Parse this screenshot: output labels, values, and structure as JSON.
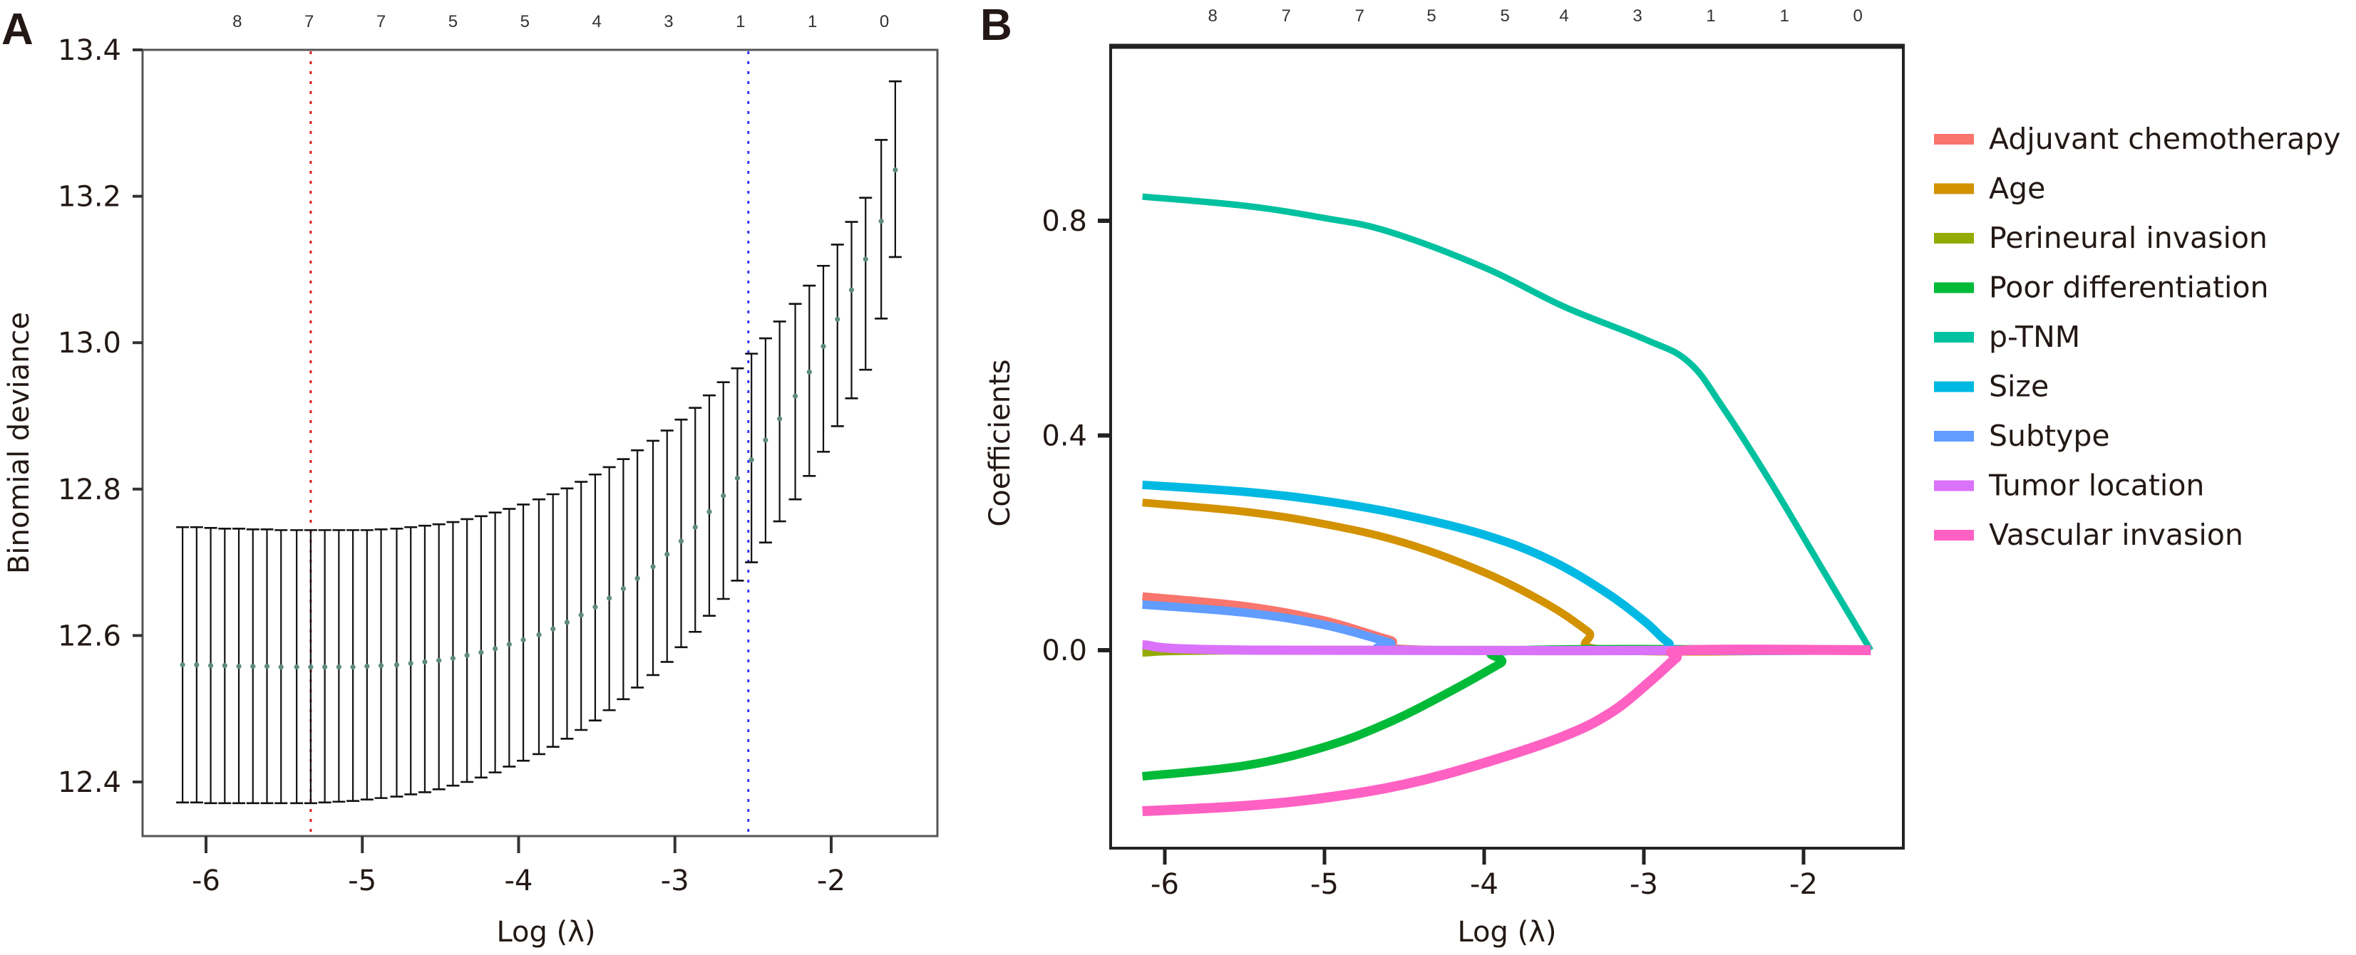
{
  "figure": {
    "panels": [
      "A",
      "B"
    ]
  },
  "chart_data": [
    {
      "panel": "A",
      "type": "scatter",
      "subtype": "errorbar",
      "title": "",
      "xlabel": "Log (λ)",
      "ylabel": "Binomial deviance",
      "xlim": [
        -6.4,
        -1.3
      ],
      "ylim": [
        12.35,
        13.4
      ],
      "xticks": [
        -6,
        -5,
        -4,
        -3,
        -2
      ],
      "xtick_labels": [
        "-6",
        "-5",
        "-4",
        "-3",
        "-2"
      ],
      "yticks": [
        12.4,
        12.6,
        12.8,
        13.0,
        13.2,
        13.4
      ],
      "ytick_labels": [
        "12.4",
        "12.6",
        "12.8",
        "13.0",
        "13.2",
        "13.4"
      ],
      "top_axis": {
        "positions": [
          -5.8,
          -5.34,
          -4.88,
          -4.42,
          -3.96,
          -3.5,
          -3.04,
          -2.58,
          -2.12,
          -1.66
        ],
        "labels": [
          "8",
          "7",
          "7",
          "5",
          "5",
          "4",
          "3",
          "1",
          "1",
          "0"
        ]
      },
      "vlines": [
        {
          "name": "lambda.min",
          "x": -5.33,
          "color": "#E41A1C",
          "style": "dotted"
        },
        {
          "name": "lambda.1se",
          "x": -2.53,
          "color": "#3333FF",
          "style": "dotted"
        }
      ],
      "point_color": "#5E8C80",
      "errorbar_color": "#000000",
      "x": [
        -6.15,
        -6.06,
        -5.97,
        -5.88,
        -5.79,
        -5.7,
        -5.61,
        -5.52,
        -5.42,
        -5.33,
        -5.24,
        -5.15,
        -5.06,
        -4.97,
        -4.88,
        -4.78,
        -4.69,
        -4.6,
        -4.51,
        -4.42,
        -4.33,
        -4.24,
        -4.15,
        -4.06,
        -3.97,
        -3.87,
        -3.78,
        -3.69,
        -3.6,
        -3.51,
        -3.42,
        -3.33,
        -3.24,
        -3.14,
        -3.05,
        -2.96,
        -2.87,
        -2.78,
        -2.69,
        -2.6,
        -2.51,
        -2.42,
        -2.33,
        -2.23,
        -2.14,
        -2.05,
        -1.96,
        -1.87,
        -1.78,
        -1.68,
        -1.59
      ],
      "mean": [
        12.56,
        12.56,
        12.559,
        12.559,
        12.558,
        12.558,
        12.558,
        12.557,
        12.557,
        12.557,
        12.557,
        12.557,
        12.557,
        12.558,
        12.559,
        12.56,
        12.562,
        12.564,
        12.566,
        12.569,
        12.573,
        12.577,
        12.582,
        12.588,
        12.594,
        12.601,
        12.609,
        12.618,
        12.628,
        12.639,
        12.651,
        12.664,
        12.678,
        12.694,
        12.711,
        12.729,
        12.748,
        12.769,
        12.791,
        12.815,
        12.84,
        12.867,
        12.896,
        12.927,
        12.96,
        12.995,
        13.032,
        13.072,
        13.114,
        13.166,
        13.236
      ],
      "upper": [
        12.748,
        12.748,
        12.747,
        12.746,
        12.746,
        12.745,
        12.745,
        12.744,
        12.744,
        12.744,
        12.744,
        12.744,
        12.744,
        12.744,
        12.745,
        12.746,
        12.748,
        12.75,
        12.752,
        12.755,
        12.759,
        12.763,
        12.768,
        12.773,
        12.779,
        12.786,
        12.793,
        12.801,
        12.81,
        12.82,
        12.83,
        12.841,
        12.853,
        12.866,
        12.88,
        12.895,
        12.911,
        12.928,
        12.946,
        12.965,
        12.985,
        13.006,
        13.029,
        13.053,
        13.078,
        13.105,
        13.134,
        13.165,
        13.198,
        13.277,
        13.357
      ],
      "lower": [
        12.372,
        12.372,
        12.371,
        12.371,
        12.371,
        12.371,
        12.371,
        12.371,
        12.371,
        12.371,
        12.372,
        12.373,
        12.374,
        12.376,
        12.378,
        12.38,
        12.383,
        12.386,
        12.39,
        12.395,
        12.4,
        12.406,
        12.413,
        12.421,
        12.429,
        12.438,
        12.448,
        12.459,
        12.471,
        12.484,
        12.498,
        12.513,
        12.529,
        12.546,
        12.564,
        12.584,
        12.605,
        12.627,
        12.65,
        12.675,
        12.7,
        12.727,
        12.756,
        12.786,
        12.818,
        12.851,
        12.886,
        12.924,
        12.963,
        13.033,
        13.117
      ]
    },
    {
      "panel": "B",
      "type": "line",
      "title": "",
      "xlabel": "Log (λ)",
      "ylabel": "Coefficients",
      "xlim": [
        -6.34,
        -1.36
      ],
      "ylim": [
        -0.369,
        1.127
      ],
      "xticks": [
        -6,
        -5,
        -4,
        -3,
        -2
      ],
      "xtick_labels": [
        "-6",
        "-5",
        "-4",
        "-3",
        "-2"
      ],
      "yticks": [
        0.0,
        0.4,
        0.8
      ],
      "ytick_labels": [
        "0.0",
        "0.4",
        "0.8"
      ],
      "top_axis": {
        "positions": [
          -5.7,
          -5.24,
          -4.78,
          -4.33,
          -3.87,
          -3.5,
          -3.04,
          -2.58,
          -2.12,
          -1.66
        ],
        "labels": [
          "8",
          "7",
          "7",
          "5",
          "5",
          "4",
          "3",
          "1",
          "1",
          "0"
        ]
      },
      "legend": {
        "placement": "right",
        "entries": [
          "Adjuvant chemotherapy",
          "Age",
          "Perineural invasion",
          "Poor differentiation",
          "p-TNM",
          "Size",
          "Subtype",
          "Tumor location",
          "Vascular invasion"
        ]
      },
      "series": [
        {
          "name": "Adjuvant chemotherapy",
          "color": "#F8766D",
          "x": [
            -6.14,
            -5.5,
            -5.0,
            -4.6,
            -4.3,
            -1.58
          ],
          "y": [
            0.1,
            0.082,
            0.055,
            0.02,
            0.0,
            0.0
          ]
        },
        {
          "name": "Age",
          "color": "#D39200",
          "x": [
            -6.14,
            -5.5,
            -5.0,
            -4.5,
            -4.0,
            -3.6,
            -3.35,
            -3.2,
            -1.58
          ],
          "y": [
            0.275,
            0.258,
            0.235,
            0.2,
            0.145,
            0.085,
            0.035,
            0.0,
            0.0
          ]
        },
        {
          "name": "Perineural invasion",
          "color": "#93AA00",
          "x": [
            -6.14,
            -5.4,
            -1.58
          ],
          "y": [
            -0.004,
            0.0,
            0.0
          ]
        },
        {
          "name": "Poor differentiation",
          "color": "#00BA38",
          "x": [
            -6.14,
            -5.5,
            -5.0,
            -4.6,
            -4.2,
            -3.9,
            -3.75,
            -1.58
          ],
          "y": [
            -0.235,
            -0.215,
            -0.18,
            -0.135,
            -0.075,
            -0.025,
            0.0,
            0.0
          ]
        },
        {
          "name": "p-TNM",
          "color": "#00C19F",
          "x": [
            -6.14,
            -5.5,
            -5.0,
            -4.6,
            -4.0,
            -3.5,
            -3.0,
            -2.72,
            -2.5,
            -2.2,
            -1.9,
            -1.58
          ],
          "y": [
            0.845,
            0.828,
            0.805,
            0.78,
            0.713,
            0.64,
            0.58,
            0.537,
            0.45,
            0.31,
            0.16,
            0.0
          ]
        },
        {
          "name": "Size",
          "color": "#00B9E3",
          "x": [
            -6.14,
            -5.5,
            -5.0,
            -4.5,
            -4.0,
            -3.6,
            -3.25,
            -3.0,
            -2.85,
            -2.72,
            -1.58
          ],
          "y": [
            0.308,
            0.295,
            0.278,
            0.252,
            0.215,
            0.17,
            0.11,
            0.055,
            0.015,
            0.0,
            0.0
          ]
        },
        {
          "name": "Subtype",
          "color": "#619CFF",
          "x": [
            -6.14,
            -5.5,
            -5.0,
            -4.6,
            -4.4,
            -1.58
          ],
          "y": [
            0.085,
            0.07,
            0.047,
            0.015,
            0.0,
            0.0
          ]
        },
        {
          "name": "Tumor location",
          "color": "#DB72FB",
          "x": [
            -6.14,
            -5.4,
            -1.58
          ],
          "y": [
            0.01,
            0.0,
            0.0
          ]
        },
        {
          "name": "Vascular invasion",
          "color": "#FF61C3",
          "x": [
            -6.14,
            -5.5,
            -5.0,
            -4.5,
            -4.0,
            -3.5,
            -3.2,
            -2.95,
            -2.8,
            -2.72,
            -1.58
          ],
          "y": [
            -0.3,
            -0.29,
            -0.275,
            -0.25,
            -0.21,
            -0.16,
            -0.115,
            -0.055,
            -0.015,
            0.0,
            0.0
          ]
        }
      ]
    }
  ]
}
